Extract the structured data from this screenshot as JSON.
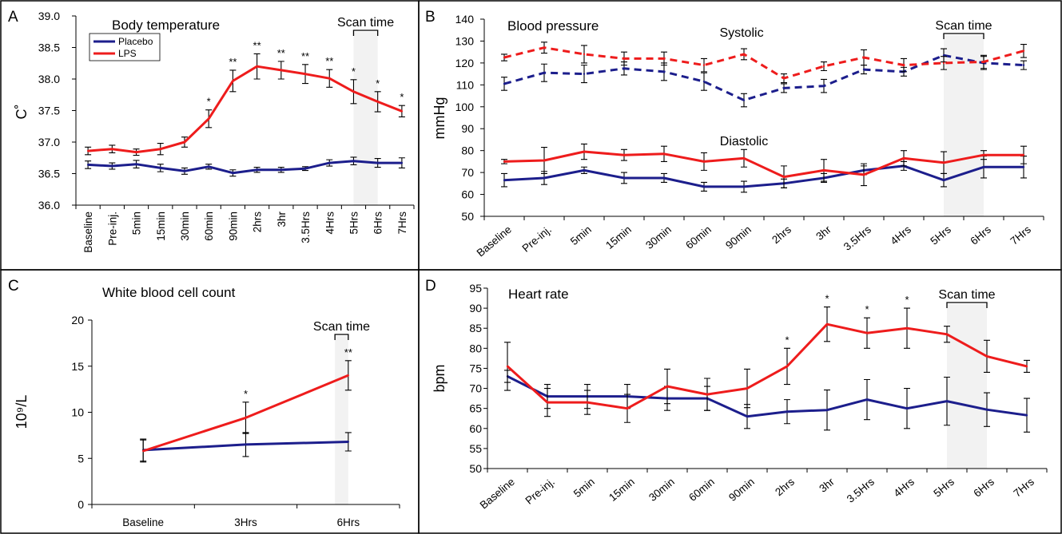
{
  "colors": {
    "placebo": "#1c1e8c",
    "lps": "#ee1c1c"
  },
  "chart_data": [
    {
      "panel": "A",
      "type": "line",
      "title": "Body temperature",
      "ylabel": "C˚",
      "ylim": [
        36.0,
        39.0
      ],
      "yticks": [
        "36.0",
        "36.5",
        "37.0",
        "37.5",
        "38.0",
        "38.5",
        "39.0"
      ],
      "categories": [
        "Baseline",
        "Pre-inj.",
        "5min",
        "15min",
        "30min",
        "60min",
        "90min",
        "2hrs",
        "3hr",
        "3.5Hrs",
        "4Hrs",
        "5Hrs",
        "6Hrs",
        "7Hrs"
      ],
      "legend": {
        "placement": "top-left",
        "entries": [
          "Placebo",
          "LPS"
        ]
      },
      "shade_label": "Scan time",
      "shade_range": [
        "5Hrs",
        "6Hrs"
      ],
      "series": [
        {
          "name": "Placebo",
          "color": "placebo",
          "values": [
            36.64,
            36.62,
            36.65,
            36.59,
            36.54,
            36.61,
            36.51,
            36.56,
            36.56,
            36.58,
            36.67,
            36.7,
            36.67,
            36.67
          ],
          "errors": [
            0.06,
            0.05,
            0.06,
            0.06,
            0.05,
            0.04,
            0.05,
            0.04,
            0.04,
            0.03,
            0.05,
            0.06,
            0.07,
            0.08
          ]
        },
        {
          "name": "LPS",
          "color": "lps",
          "values": [
            36.86,
            36.89,
            36.84,
            36.89,
            37.0,
            37.37,
            37.97,
            38.2,
            38.14,
            38.08,
            38.01,
            37.8,
            37.64,
            37.49
          ],
          "errors": [
            0.06,
            0.06,
            0.05,
            0.09,
            0.08,
            0.14,
            0.17,
            0.2,
            0.14,
            0.15,
            0.14,
            0.19,
            0.16,
            0.09
          ]
        }
      ],
      "annotations": [
        {
          "category": "60min",
          "text": "*"
        },
        {
          "category": "90min",
          "text": "**"
        },
        {
          "category": "2hrs",
          "text": "**"
        },
        {
          "category": "3hr",
          "text": "**"
        },
        {
          "category": "3.5Hrs",
          "text": "**"
        },
        {
          "category": "4Hrs",
          "text": "**"
        },
        {
          "category": "5Hrs",
          "text": "*"
        },
        {
          "category": "6Hrs",
          "text": "*"
        },
        {
          "category": "7Hrs",
          "text": "*"
        }
      ]
    },
    {
      "panel": "B",
      "type": "line",
      "title": "Blood pressure",
      "ylabel": "mmHg",
      "ylim": [
        50,
        140
      ],
      "yticks": [
        "50",
        "60",
        "70",
        "80",
        "90",
        "100",
        "110",
        "120",
        "130",
        "140"
      ],
      "categories": [
        "Baseline",
        "Pre-inj.",
        "5min",
        "15min",
        "30min",
        "60min",
        "90min",
        "2hrs",
        "3hr",
        "3.5Hrs",
        "4Hrs",
        "5Hrs",
        "6Hrs",
        "7Hrs"
      ],
      "shade_label": "Scan time",
      "shade_range": [
        "5Hrs",
        "6Hrs"
      ],
      "labels": [
        "Systolic",
        "Diastolic"
      ],
      "series": [
        {
          "name": "Systolic Placebo",
          "color": "placebo",
          "dashed": true,
          "values": [
            110.5,
            115.5,
            115,
            117.5,
            116,
            111.5,
            103,
            108.5,
            109.5,
            117,
            116,
            123.5,
            120,
            119
          ],
          "errors": [
            3,
            4,
            4,
            3,
            4,
            4,
            3,
            2,
            3,
            2,
            2,
            3,
            3,
            2
          ]
        },
        {
          "name": "Systolic LPS",
          "color": "lps",
          "dashed": true,
          "values": [
            122.5,
            127,
            124,
            122,
            122,
            119,
            124,
            113,
            118.5,
            122.5,
            119,
            120,
            120.5,
            125.5
          ],
          "errors": [
            1.5,
            2.5,
            4,
            3,
            3,
            3,
            2.5,
            2,
            2,
            3.5,
            3,
            3,
            3,
            3
          ]
        },
        {
          "name": "Diastolic Placebo",
          "color": "placebo",
          "values": [
            66.5,
            67.5,
            71,
            67.5,
            67.5,
            63.5,
            63.5,
            65,
            67.5,
            71,
            73,
            66.5,
            72.5,
            72.5
          ],
          "errors": [
            3,
            3,
            1.5,
            2.5,
            2,
            2,
            2.5,
            2,
            2,
            2,
            2,
            3,
            5,
            5
          ]
        },
        {
          "name": "Diastolic LPS",
          "color": "lps",
          "values": [
            75,
            75.5,
            79.5,
            78,
            78.5,
            75,
            76.5,
            68,
            71,
            69,
            76.5,
            74.5,
            78,
            78
          ],
          "errors": [
            1,
            6,
            3.5,
            2.5,
            3.5,
            4,
            4,
            5,
            5,
            5,
            3.5,
            5,
            2,
            4
          ]
        }
      ]
    },
    {
      "panel": "C",
      "type": "line",
      "title": "White blood cell count",
      "ylabel": "10⁹/L",
      "ylim": [
        0,
        20
      ],
      "yticks": [
        "0",
        "5",
        "10",
        "15",
        "20"
      ],
      "categories": [
        "Baseline",
        "3Hrs",
        "6Hrs"
      ],
      "shade_label": "Scan time",
      "shade_range": [
        "6Hrs"
      ],
      "series": [
        {
          "name": "Placebo",
          "color": "placebo",
          "values": [
            5.9,
            6.5,
            6.8
          ],
          "errors": [
            1.2,
            1.3,
            1.0
          ]
        },
        {
          "name": "LPS",
          "color": "lps",
          "values": [
            5.8,
            9.4,
            14.0
          ],
          "errors": [
            1.2,
            1.7,
            1.6
          ]
        }
      ],
      "annotations": [
        {
          "category": "3Hrs",
          "text": "*"
        },
        {
          "category": "6Hrs",
          "text": "**"
        }
      ]
    },
    {
      "panel": "D",
      "type": "line",
      "title": "Heart rate",
      "ylabel": "bpm",
      "ylim": [
        50,
        95
      ],
      "yticks": [
        "50",
        "55",
        "60",
        "65",
        "70",
        "75",
        "80",
        "85",
        "90",
        "95"
      ],
      "categories": [
        "Baseline",
        "Pre-inj.",
        "5min",
        "15min",
        "30min",
        "60min",
        "90min",
        "2hrs",
        "3hr",
        "3.5Hrs",
        "4Hrs",
        "5Hrs",
        "6Hrs",
        "7Hrs"
      ],
      "shade_label": "Scan time",
      "shade_range": [
        "5Hrs",
        "6Hrs"
      ],
      "series": [
        {
          "name": "Placebo",
          "color": "placebo",
          "values": [
            73,
            68,
            68,
            68,
            67.5,
            67.5,
            63,
            64.2,
            64.6,
            67.2,
            65,
            66.8,
            64.7,
            63.3
          ],
          "errors": [
            1.5,
            3,
            3,
            3,
            3,
            3,
            3,
            3,
            5,
            5,
            5,
            6,
            4.2,
            4.2
          ]
        },
        {
          "name": "LPS",
          "color": "lps",
          "values": [
            75.5,
            66.5,
            66.5,
            65,
            70.5,
            68.5,
            70,
            75.5,
            86,
            83.8,
            85,
            83.5,
            78,
            75.5
          ],
          "errors": [
            6,
            3.5,
            3,
            3.5,
            4.3,
            4,
            4.8,
            4.5,
            4.3,
            3.8,
            5,
            2,
            4,
            1.5
          ]
        }
      ],
      "annotations": [
        {
          "category": "2hrs",
          "text": "*"
        },
        {
          "category": "3hr",
          "text": "*"
        },
        {
          "category": "3.5Hrs",
          "text": "*"
        },
        {
          "category": "4Hrs",
          "text": "*"
        }
      ]
    }
  ]
}
